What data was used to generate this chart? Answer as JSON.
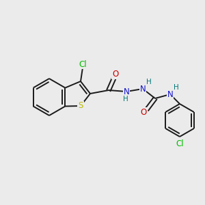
{
  "background_color": "#ebebeb",
  "bond_color": "#1a1a1a",
  "atom_colors": {
    "Cl": "#00bb00",
    "S": "#bbbb00",
    "N": "#1010cc",
    "O": "#cc0000",
    "H": "#007777"
  },
  "figsize": [
    3.0,
    3.0
  ],
  "dpi": 100
}
